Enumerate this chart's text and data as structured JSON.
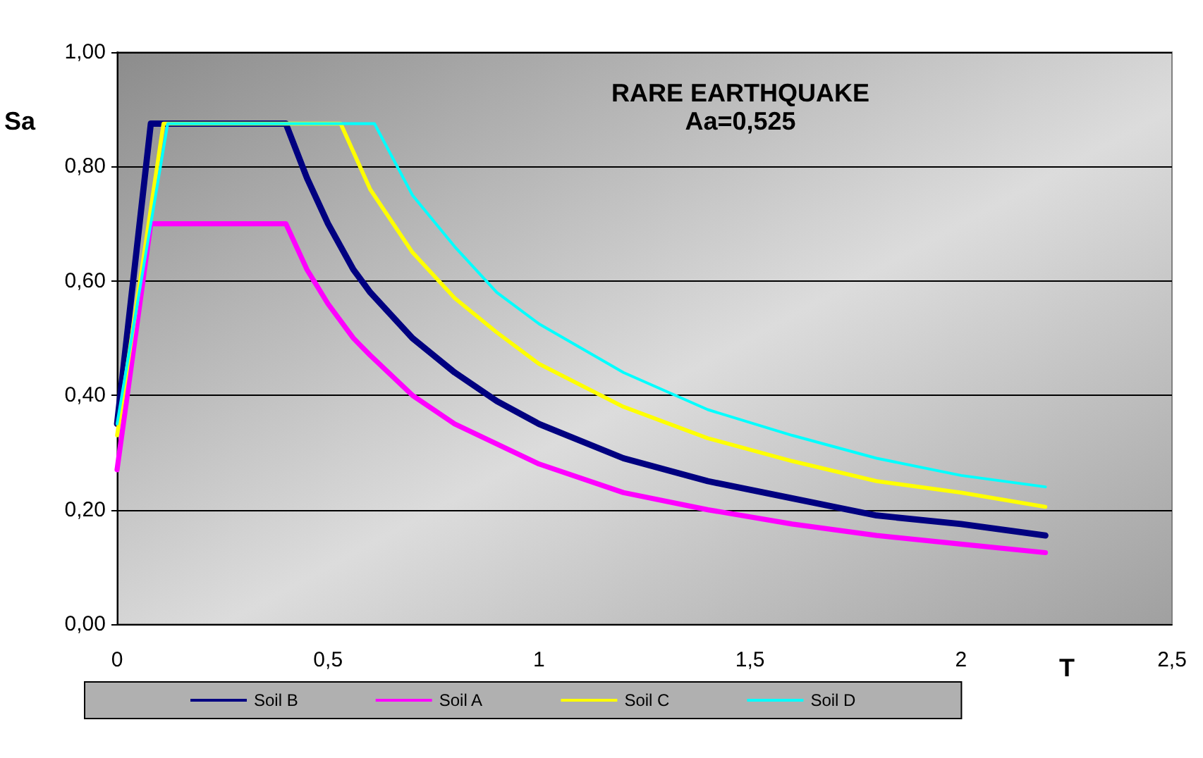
{
  "chart_data": {
    "type": "line",
    "title": "RARE EARTHQUAKE",
    "subtitle": "Aa=0,525",
    "xlabel": "T",
    "ylabel": "Sa",
    "series": [
      {
        "name": "Soil B",
        "color": "#000080",
        "x": [
          0,
          0.08,
          0.4,
          0.45,
          0.5,
          0.56,
          0.6,
          0.7,
          0.8,
          0.9,
          1,
          1.2,
          1.4,
          1.6,
          1.8,
          2,
          2.2
        ],
        "values": [
          0.35,
          0.875,
          0.875,
          0.78,
          0.7,
          0.62,
          0.58,
          0.5,
          0.44,
          0.39,
          0.35,
          0.29,
          0.25,
          0.22,
          0.19,
          0.175,
          0.155
        ]
      },
      {
        "name": "Soil A",
        "color": "#ff00ff",
        "x": [
          0,
          0.08,
          0.4,
          0.45,
          0.5,
          0.56,
          0.6,
          0.7,
          0.8,
          1,
          1.2,
          1.4,
          1.6,
          1.8,
          2,
          2.2
        ],
        "values": [
          0.27,
          0.7,
          0.7,
          0.62,
          0.56,
          0.5,
          0.47,
          0.4,
          0.35,
          0.28,
          0.23,
          0.2,
          0.175,
          0.155,
          0.14,
          0.125
        ]
      },
      {
        "name": "Soil C",
        "color": "#ffff00",
        "x": [
          0,
          0.11,
          0.53,
          0.6,
          0.7,
          0.8,
          0.9,
          1,
          1.2,
          1.4,
          1.6,
          1.8,
          2,
          2.2
        ],
        "values": [
          0.33,
          0.875,
          0.875,
          0.76,
          0.65,
          0.57,
          0.51,
          0.455,
          0.38,
          0.325,
          0.285,
          0.25,
          0.23,
          0.205
        ]
      },
      {
        "name": "Soil D",
        "color": "#00ffff",
        "x": [
          0,
          0.12,
          0.61,
          0.7,
          0.8,
          0.9,
          1,
          1.2,
          1.4,
          1.6,
          1.8,
          2,
          2.2
        ],
        "values": [
          0.35,
          0.875,
          0.875,
          0.75,
          0.66,
          0.58,
          0.525,
          0.44,
          0.375,
          0.33,
          0.29,
          0.26,
          0.24
        ]
      }
    ],
    "xlim": [
      0,
      2.5
    ],
    "xticks": [
      0,
      {
        "value": 0.5,
        "label": "0,5"
      },
      1,
      {
        "value": 1.5,
        "label": "1,5"
      },
      2,
      {
        "value": 2.5,
        "label": "2,5"
      }
    ],
    "ylim": [
      0,
      1
    ],
    "yticks": [
      {
        "value": 0,
        "label": "0,00"
      },
      {
        "value": 0.2,
        "label": "0,20"
      },
      {
        "value": 0.4,
        "label": "0,40"
      },
      {
        "value": 0.6,
        "label": "0,60"
      },
      {
        "value": 0.8,
        "label": "0,80"
      },
      {
        "value": 1,
        "label": "1,00"
      }
    ],
    "grid": "y",
    "legend": "bottom",
    "marker": "none",
    "line_style": "solid"
  }
}
